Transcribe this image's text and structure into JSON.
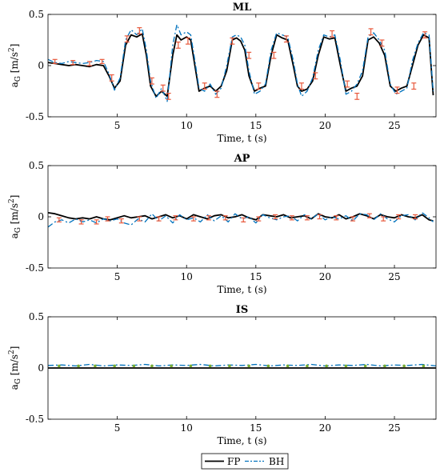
{
  "chart_data": [
    {
      "type": "line",
      "title": "ML",
      "xlabel": "Time, t (s)",
      "ylabel": "a_G [m/s^2]",
      "xlim": [
        0,
        28
      ],
      "ylim": [
        -0.5,
        0.5
      ],
      "xticks": [
        "5",
        "10",
        "15",
        "20",
        "25"
      ],
      "yticks": [
        "0.5",
        "0",
        "-0.5"
      ],
      "grid": false,
      "series": [
        {
          "name": "FP",
          "color": "#000000",
          "style": "solid",
          "x": [
            0,
            0.5,
            1,
            1.5,
            2,
            2.5,
            3,
            3.5,
            4,
            4.4,
            4.8,
            5.2,
            5.6,
            6,
            6.4,
            6.8,
            7.1,
            7.4,
            7.8,
            8.2,
            8.6,
            9,
            9.3,
            9.6,
            10,
            10.3,
            10.6,
            10.9,
            11.3,
            11.7,
            12.1,
            12.5,
            12.9,
            13.3,
            13.6,
            13.9,
            14.2,
            14.5,
            14.9,
            15.3,
            15.7,
            16.1,
            16.5,
            16.9,
            17.3,
            17.7,
            18,
            18.3,
            18.7,
            19.1,
            19.5,
            19.9,
            20.3,
            20.7,
            21.1,
            21.5,
            21.9,
            22.3,
            22.7,
            23.1,
            23.5,
            23.9,
            24.3,
            24.7,
            25.1,
            25.5,
            25.9,
            26.3,
            26.7,
            27.1,
            27.5,
            27.8
          ],
          "y": [
            0.03,
            0.02,
            0.01,
            0.0,
            0.01,
            0.0,
            -0.01,
            0.01,
            0.0,
            -0.1,
            -0.22,
            -0.15,
            0.2,
            0.3,
            0.28,
            0.31,
            0.1,
            -0.2,
            -0.3,
            -0.25,
            -0.3,
            0.1,
            0.3,
            0.25,
            0.28,
            0.25,
            0.0,
            -0.25,
            -0.22,
            -0.2,
            -0.25,
            -0.2,
            -0.05,
            0.25,
            0.27,
            0.24,
            0.15,
            -0.1,
            -0.25,
            -0.22,
            -0.2,
            0.1,
            0.3,
            0.27,
            0.25,
            0.0,
            -0.2,
            -0.25,
            -0.23,
            -0.15,
            0.1,
            0.28,
            0.26,
            0.27,
            0.0,
            -0.25,
            -0.22,
            -0.2,
            -0.1,
            0.25,
            0.28,
            0.22,
            0.1,
            -0.2,
            -0.25,
            -0.22,
            -0.2,
            0.0,
            0.2,
            0.3,
            0.27,
            -0.29
          ]
        },
        {
          "name": "BH",
          "color": "#0072BD",
          "style": "dashdot",
          "x": [
            0,
            0.5,
            1,
            1.5,
            2,
            2.5,
            3,
            3.5,
            4,
            4.4,
            4.8,
            5.2,
            5.6,
            6,
            6.4,
            6.8,
            7.1,
            7.4,
            7.8,
            8.2,
            8.6,
            9,
            9.3,
            9.6,
            10,
            10.3,
            10.6,
            10.9,
            11.3,
            11.7,
            12.1,
            12.5,
            12.9,
            13.3,
            13.6,
            13.9,
            14.2,
            14.5,
            14.9,
            15.3,
            15.7,
            16.1,
            16.5,
            16.9,
            17.3,
            17.7,
            18,
            18.3,
            18.7,
            19.1,
            19.5,
            19.9,
            20.3,
            20.7,
            21.1,
            21.5,
            21.9,
            22.3,
            22.7,
            23.1,
            23.5,
            23.9,
            24.3,
            24.7,
            25.1,
            25.5,
            25.9,
            26.3,
            26.7,
            27.1,
            27.5,
            27.8
          ],
          "y": [
            0.06,
            0.03,
            0.02,
            0.04,
            0.03,
            0.02,
            0.03,
            0.05,
            0.04,
            -0.08,
            -0.24,
            -0.12,
            0.25,
            0.35,
            0.3,
            0.36,
            0.15,
            -0.15,
            -0.32,
            -0.22,
            -0.35,
            0.2,
            0.4,
            0.3,
            0.33,
            0.3,
            0.05,
            -0.22,
            -0.25,
            -0.18,
            -0.28,
            -0.22,
            0.0,
            0.28,
            0.3,
            0.28,
            0.2,
            -0.05,
            -0.28,
            -0.25,
            -0.18,
            0.15,
            0.32,
            0.3,
            0.28,
            0.05,
            -0.18,
            -0.3,
            -0.25,
            -0.12,
            0.15,
            0.3,
            0.28,
            0.3,
            0.05,
            -0.28,
            -0.25,
            -0.18,
            -0.05,
            0.28,
            0.32,
            0.25,
            0.15,
            -0.18,
            -0.28,
            -0.25,
            -0.22,
            0.05,
            0.22,
            0.32,
            0.3,
            -0.25
          ]
        }
      ],
      "error_bars_color": "#E8593C",
      "error_bars": [
        {
          "x": 0.5,
          "y": 0.04,
          "e": 0.02
        },
        {
          "x": 1.8,
          "y": 0.03,
          "e": 0.02
        },
        {
          "x": 3,
          "y": 0.02,
          "e": 0.02
        },
        {
          "x": 3.9,
          "y": 0.04,
          "e": 0.02
        },
        {
          "x": 4.6,
          "y": -0.12,
          "e": 0.03
        },
        {
          "x": 5.7,
          "y": 0.26,
          "e": 0.03
        },
        {
          "x": 6.6,
          "y": 0.34,
          "e": 0.03
        },
        {
          "x": 7.5,
          "y": -0.15,
          "e": 0.03
        },
        {
          "x": 8.3,
          "y": -0.22,
          "e": 0.03
        },
        {
          "x": 8.7,
          "y": -0.3,
          "e": 0.03
        },
        {
          "x": 9.4,
          "y": 0.2,
          "e": 0.03
        },
        {
          "x": 10.1,
          "y": 0.24,
          "e": 0.03
        },
        {
          "x": 11.3,
          "y": -0.2,
          "e": 0.03
        },
        {
          "x": 12.2,
          "y": -0.28,
          "e": 0.03
        },
        {
          "x": 13.3,
          "y": 0.24,
          "e": 0.03
        },
        {
          "x": 14.5,
          "y": 0.1,
          "e": 0.03
        },
        {
          "x": 15.2,
          "y": -0.2,
          "e": 0.03
        },
        {
          "x": 16.3,
          "y": 0.1,
          "e": 0.03
        },
        {
          "x": 17.2,
          "y": 0.26,
          "e": 0.03
        },
        {
          "x": 18.3,
          "y": -0.2,
          "e": 0.03
        },
        {
          "x": 19.3,
          "y": -0.1,
          "e": 0.03
        },
        {
          "x": 20.5,
          "y": 0.31,
          "e": 0.03
        },
        {
          "x": 21.6,
          "y": -0.18,
          "e": 0.03
        },
        {
          "x": 22.3,
          "y": -0.3,
          "e": 0.03
        },
        {
          "x": 23.3,
          "y": 0.33,
          "e": 0.03
        },
        {
          "x": 24.1,
          "y": 0.22,
          "e": 0.03
        },
        {
          "x": 25.2,
          "y": -0.24,
          "e": 0.03
        },
        {
          "x": 26.4,
          "y": -0.2,
          "e": 0.03
        },
        {
          "x": 27.2,
          "y": 0.3,
          "e": 0.03
        }
      ]
    },
    {
      "type": "line",
      "title": "AP",
      "xlabel": "Time, t (s)",
      "ylabel": "a_G [m/s^2]",
      "xlim": [
        0,
        28
      ],
      "ylim": [
        -0.5,
        0.5
      ],
      "xticks": [
        "5",
        "10",
        "15",
        "20",
        "25"
      ],
      "yticks": [
        "0.5",
        "0",
        "-0.5"
      ],
      "grid": false,
      "series": [
        {
          "name": "FP",
          "color": "#000000",
          "style": "solid",
          "x": [
            0,
            0.5,
            1,
            1.5,
            2,
            2.5,
            3,
            3.5,
            4,
            4.5,
            5,
            5.5,
            6,
            6.5,
            7,
            7.5,
            8,
            8.5,
            9,
            9.5,
            10,
            10.5,
            11,
            11.5,
            12,
            12.5,
            13,
            13.5,
            14,
            14.5,
            15,
            15.5,
            16,
            16.5,
            17,
            17.5,
            18,
            18.5,
            19,
            19.5,
            20,
            20.5,
            21,
            21.5,
            22,
            22.5,
            23,
            23.5,
            24,
            24.5,
            25,
            25.5,
            26,
            26.5,
            27,
            27.5,
            27.8
          ],
          "y": [
            0.04,
            0.03,
            0.01,
            -0.01,
            -0.02,
            -0.01,
            -0.02,
            0.0,
            -0.02,
            -0.03,
            -0.01,
            0.01,
            -0.01,
            0.0,
            0.01,
            -0.02,
            0.0,
            0.02,
            -0.01,
            0.01,
            -0.02,
            0.02,
            0.0,
            -0.02,
            0.01,
            0.02,
            -0.01,
            0.0,
            0.02,
            -0.01,
            -0.03,
            0.02,
            0.01,
            0.0,
            0.02,
            -0.01,
            0.0,
            0.01,
            -0.02,
            0.03,
            0.0,
            -0.01,
            0.02,
            -0.02,
            0.0,
            0.03,
            0.01,
            -0.02,
            0.02,
            0.0,
            -0.01,
            0.02,
            0.0,
            -0.01,
            0.02,
            -0.03,
            -0.04
          ]
        },
        {
          "name": "BH",
          "color": "#0072BD",
          "style": "dashdot",
          "x": [
            0,
            0.5,
            1,
            1.5,
            2,
            2.5,
            3,
            3.5,
            4,
            4.5,
            5,
            5.5,
            6,
            6.5,
            7,
            7.5,
            8,
            8.5,
            9,
            9.5,
            10,
            10.5,
            11,
            11.5,
            12,
            12.5,
            13,
            13.5,
            14,
            14.5,
            15,
            15.5,
            16,
            16.5,
            17,
            17.5,
            18,
            18.5,
            19,
            19.5,
            20,
            20.5,
            21,
            21.5,
            22,
            22.5,
            23,
            23.5,
            24,
            24.5,
            25,
            25.5,
            26,
            26.5,
            27,
            27.5,
            27.8
          ],
          "y": [
            -0.1,
            -0.05,
            -0.03,
            -0.06,
            -0.02,
            -0.05,
            -0.03,
            -0.06,
            -0.02,
            -0.04,
            -0.02,
            -0.06,
            -0.08,
            -0.02,
            -0.05,
            0.03,
            -0.04,
            0.01,
            -0.06,
            0.02,
            -0.03,
            -0.01,
            -0.05,
            0.02,
            -0.04,
            0.01,
            -0.05,
            0.03,
            -0.02,
            0.0,
            -0.06,
            0.02,
            -0.01,
            -0.03,
            0.0,
            0.01,
            -0.04,
            0.02,
            -0.02,
            0.03,
            -0.03,
            0.0,
            -0.02,
            0.01,
            -0.04,
            0.03,
            0.02,
            -0.03,
            0.03,
            -0.02,
            -0.05,
            0.01,
            0.02,
            -0.03,
            0.04,
            -0.01,
            -0.05
          ]
        }
      ],
      "error_bars_color": "#E8593C",
      "error_bars": [
        {
          "x": 0.8,
          "y": -0.03,
          "e": 0.02
        },
        {
          "x": 2.4,
          "y": -0.05,
          "e": 0.02
        },
        {
          "x": 3.5,
          "y": -0.05,
          "e": 0.02
        },
        {
          "x": 4.3,
          "y": -0.02,
          "e": 0.02
        },
        {
          "x": 5.3,
          "y": -0.04,
          "e": 0.02
        },
        {
          "x": 6.6,
          "y": -0.02,
          "e": 0.02
        },
        {
          "x": 8,
          "y": -0.02,
          "e": 0.02
        },
        {
          "x": 9.2,
          "y": -0.01,
          "e": 0.02
        },
        {
          "x": 10.5,
          "y": -0.02,
          "e": 0.02
        },
        {
          "x": 11.6,
          "y": -0.01,
          "e": 0.02
        },
        {
          "x": 12.8,
          "y": -0.01,
          "e": 0.02
        },
        {
          "x": 14.1,
          "y": -0.03,
          "e": 0.02
        },
        {
          "x": 15.2,
          "y": -0.02,
          "e": 0.02
        },
        {
          "x": 16.4,
          "y": 0.0,
          "e": 0.02
        },
        {
          "x": 17.6,
          "y": -0.01,
          "e": 0.02
        },
        {
          "x": 18.7,
          "y": -0.01,
          "e": 0.02
        },
        {
          "x": 19.6,
          "y": 0.0,
          "e": 0.02
        },
        {
          "x": 20.8,
          "y": -0.01,
          "e": 0.02
        },
        {
          "x": 22,
          "y": -0.02,
          "e": 0.02
        },
        {
          "x": 23.2,
          "y": 0.01,
          "e": 0.02
        },
        {
          "x": 24.2,
          "y": -0.02,
          "e": 0.02
        },
        {
          "x": 25.3,
          "y": 0.0,
          "e": 0.02
        },
        {
          "x": 26.5,
          "y": 0.0,
          "e": 0.02
        }
      ]
    },
    {
      "type": "line",
      "title": "IS",
      "xlabel": "Time, t (s)",
      "ylabel": "a_G [m/s^2]",
      "xlim": [
        0,
        28
      ],
      "ylim": [
        -0.5,
        0.5
      ],
      "xticks": [
        "5",
        "10",
        "15",
        "20",
        "25"
      ],
      "yticks": [
        "0.5",
        "0",
        "-0.5"
      ],
      "grid": false,
      "series": [
        {
          "name": "FP",
          "color": "#000000",
          "style": "solid",
          "x": [
            0,
            28
          ],
          "y": [
            0,
            0
          ]
        },
        {
          "name": "BH",
          "color": "#0072BD",
          "style": "dashdot",
          "x": [
            0,
            1,
            2,
            3,
            4,
            5,
            6,
            7,
            8,
            9,
            10,
            11,
            12,
            13,
            14,
            15,
            16,
            17,
            18,
            19,
            20,
            21,
            22,
            23,
            24,
            25,
            26,
            27,
            28
          ],
          "y": [
            0.025,
            0.03,
            0.02,
            0.035,
            0.02,
            0.03,
            0.025,
            0.035,
            0.02,
            0.03,
            0.025,
            0.035,
            0.02,
            0.03,
            0.025,
            0.035,
            0.02,
            0.03,
            0.025,
            0.035,
            0.02,
            0.03,
            0.025,
            0.035,
            0.02,
            0.03,
            0.025,
            0.035,
            0.02
          ]
        }
      ],
      "markers": {
        "color": "#77AC30",
        "x": [
          0.8,
          2.2,
          3.4,
          4.8,
          6.2,
          7.5,
          8.9,
          10.3,
          11.7,
          13.1,
          14.5,
          15.9,
          17.3,
          18.7,
          20.1,
          21.5,
          22.9,
          24.3,
          25.7,
          27.1
        ],
        "y": [
          0.02,
          0.02,
          0.02,
          0.02,
          0.02,
          0.02,
          0.02,
          0.02,
          0.02,
          0.02,
          0.02,
          0.02,
          0.02,
          0.02,
          0.02,
          0.02,
          0.02,
          0.02,
          0.02,
          0.02
        ]
      }
    }
  ],
  "legend": {
    "placement": "bottom-center",
    "items": [
      {
        "label": "FP",
        "color": "#000000",
        "style": "solid"
      },
      {
        "label": "BH",
        "color": "#0072BD",
        "style": "dashdot"
      }
    ]
  }
}
